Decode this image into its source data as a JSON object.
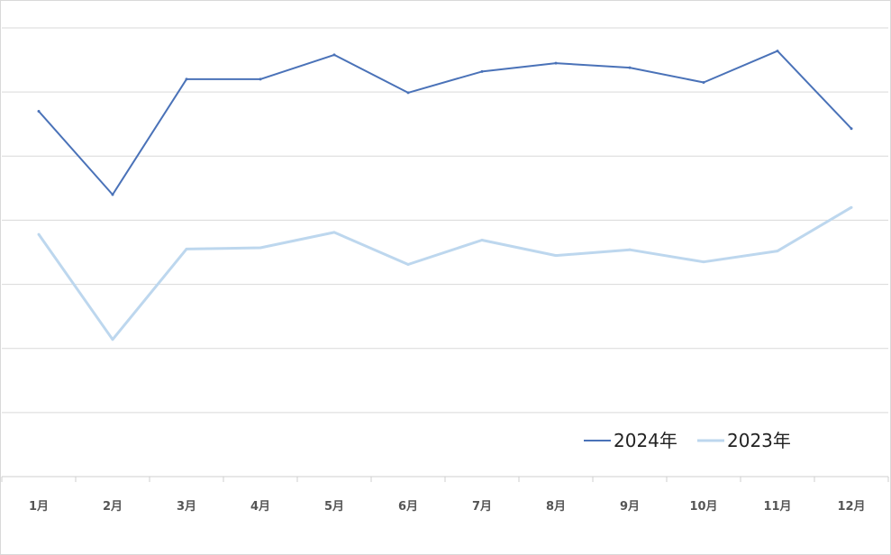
{
  "chart_data": {
    "type": "line",
    "categories": [
      "1月",
      "2月",
      "3月",
      "4月",
      "5月",
      "6月",
      "7月",
      "8月",
      "9月",
      "10月",
      "11月",
      "12月"
    ],
    "series": [
      {
        "name": "2024年",
        "color": "#4a72b8",
        "values": [
          5.7,
          4.4,
          6.2,
          6.2,
          6.58,
          5.99,
          6.32,
          6.45,
          6.38,
          6.15,
          6.64,
          5.43
        ]
      },
      {
        "name": "2023年",
        "color": "#bdd7ee",
        "values": [
          3.78,
          2.14,
          3.55,
          3.57,
          3.81,
          3.31,
          3.69,
          3.45,
          3.54,
          3.35,
          3.52,
          4.2
        ]
      }
    ],
    "ylim": [
      0,
      7
    ],
    "grid": true,
    "legend": "bottom-right",
    "title": "",
    "xlabel": "",
    "ylabel": ""
  }
}
